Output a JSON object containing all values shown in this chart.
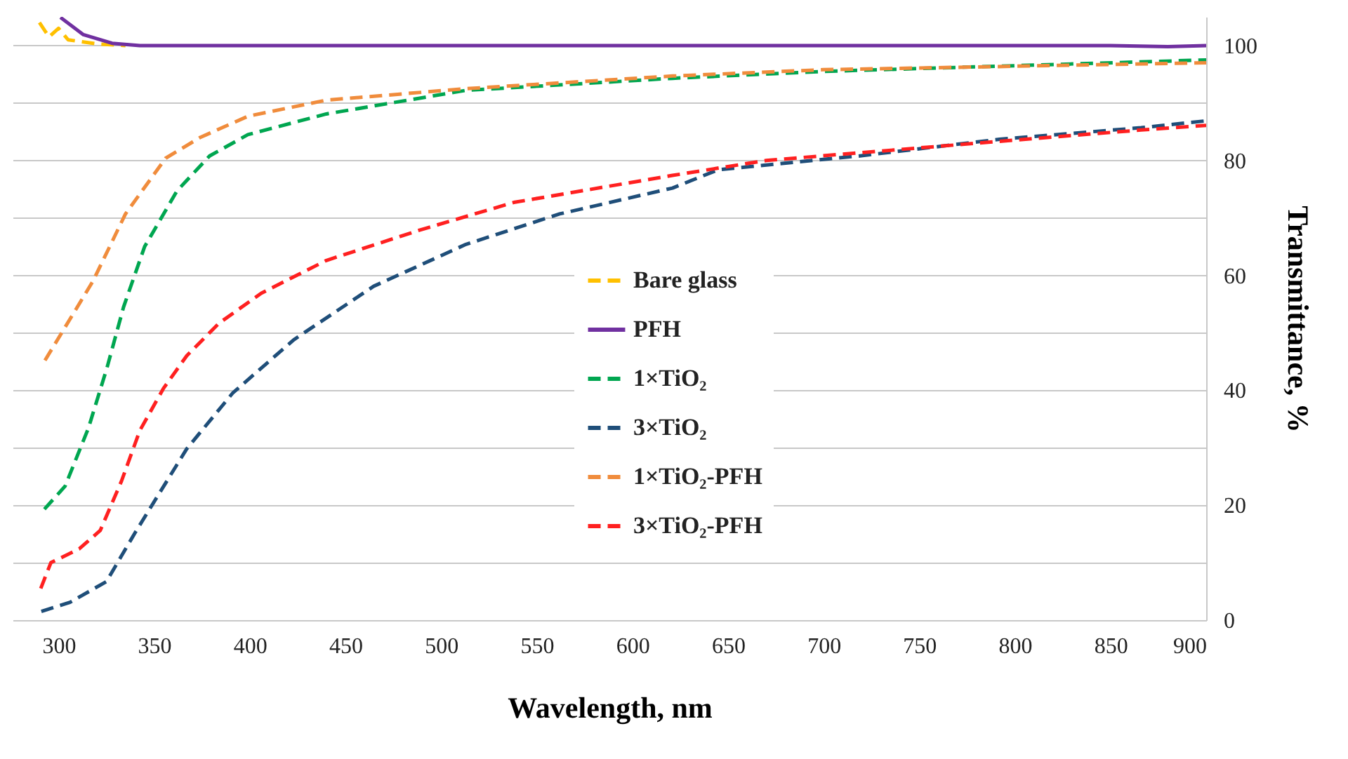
{
  "chart_data": {
    "type": "line",
    "xlabel": "Wavelength, nm",
    "ylabel": "Transmittance, %",
    "xlim": [
      276,
      900
    ],
    "xticks": [
      300,
      350,
      400,
      450,
      500,
      550,
      600,
      650,
      700,
      750,
      800,
      850,
      900
    ],
    "ylim": [
      0,
      105
    ],
    "yticks": [
      0,
      {
        "value": 10,
        "label": null
      },
      20,
      {
        "value": 30,
        "label": null
      },
      40,
      {
        "value": 50,
        "label": null
      },
      60,
      {
        "value": 70,
        "label": null
      },
      80,
      {
        "value": 90,
        "label": null
      },
      100
    ],
    "grid": "y",
    "legend": "right",
    "marker": "none",
    "series": [
      {
        "name": "Bare glass",
        "color": "#ffc000",
        "line_style": "dashed",
        "x": [
          290,
          295,
          300,
          305,
          320,
          335
        ],
        "values": [
          104,
          101.5,
          103,
          101,
          100.3,
          100
        ]
      },
      {
        "name": "PFH",
        "color": "#7030a0",
        "line_style": "solid",
        "x": [
          301,
          313,
          328,
          342.5,
          500,
          700,
          850,
          880,
          900
        ],
        "values": [
          104.9,
          101.9,
          100.4,
          100,
          100,
          100,
          100,
          99.8,
          100
        ]
      },
      {
        "name": "1×TiO₂",
        "color": "#00a650",
        "line_style": "dashed",
        "x": [
          292.6,
          303.4,
          315.6,
          325.4,
          334,
          345,
          361.9,
          379,
          399,
          440,
          513,
          621,
          700,
          800,
          900
        ],
        "values": [
          19.3,
          23.3,
          33.4,
          44,
          54.5,
          65,
          74.7,
          80.8,
          84.5,
          88.1,
          92.2,
          94.3,
          95.5,
          96.5,
          97.5
        ]
      },
      {
        "name": "3×TiO₂",
        "color": "#1f4e79",
        "line_style": "dashed",
        "x": [
          291,
          306,
          325,
          340,
          352,
          367,
          391,
          423,
          464.7,
          513,
          562,
          621,
          645,
          719,
          792,
          866,
          900
        ],
        "values": [
          1.5,
          3.1,
          6.7,
          15.2,
          21.7,
          29.8,
          39.5,
          48.8,
          58.1,
          65.4,
          70.7,
          75.2,
          78.4,
          80.8,
          83.7,
          85.7,
          86.9
        ]
      },
      {
        "name": "1×TiO₂-PFH",
        "color": "#f08c3c",
        "line_style": "dashed",
        "x": [
          292.9,
          298,
          318,
          335,
          356,
          374,
          399,
          440,
          513,
          621,
          700,
          800,
          900
        ],
        "values": [
          45.2,
          48,
          59,
          70.7,
          80.4,
          84,
          87.7,
          90.5,
          92.5,
          94.7,
          95.8,
          96.4,
          97
        ]
      },
      {
        "name": "3×TiO₂-PFH",
        "color": "#ff2020",
        "line_style": "dashed",
        "x": [
          290.7,
          296,
          310.8,
          321.8,
          332.8,
          342.5,
          354.8,
          367,
          384,
          406,
          440,
          489,
          538,
          621,
          670,
          743,
          817,
          866,
          900
        ],
        "values": [
          5.5,
          10,
          12.4,
          15.6,
          24.1,
          33,
          40.3,
          46,
          51.7,
          56.9,
          62.6,
          67.9,
          72.7,
          77.4,
          80,
          82,
          84,
          85.3,
          86.1
        ]
      }
    ]
  }
}
